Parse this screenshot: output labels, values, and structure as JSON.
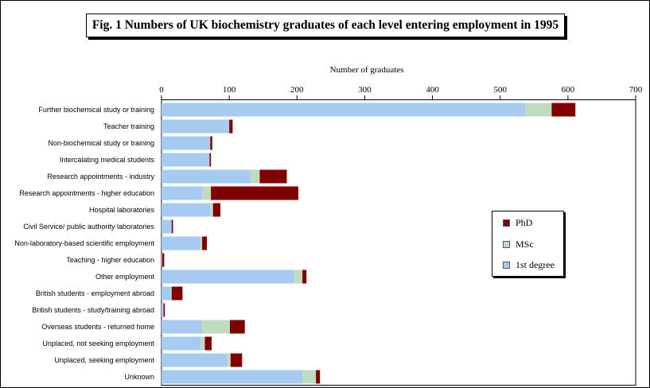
{
  "chart_data": {
    "type": "bar",
    "orientation": "horizontal",
    "stacked": true,
    "title": "Fig. 1 Numbers of UK biochemistry graduates of each level entering employment in 1995",
    "xlabel": "Number of graduates",
    "ylabel": "",
    "xlim": [
      0,
      700
    ],
    "xticks": [
      "0",
      "100",
      "200",
      "300",
      "400",
      "500",
      "600",
      "700"
    ],
    "legend_position": "right",
    "categories": [
      "Further biochemical study or training",
      "Teacher training",
      "Non-biochemical study or training",
      "Intercalating medical students",
      "Research appointments - industry",
      "Research appointments - higher education",
      "Hospital laboratories",
      "Civil Service/ public authority laboratories",
      "Non-laboratory-based scientific employment",
      "Teaching - higher education",
      "Other employment",
      "British students - employment abroad",
      "British students - study/training abroad",
      "Overseas students - returned home",
      "Unplaced, not seeking employment",
      "Unplaced, seeking employment",
      "Unknown"
    ],
    "series": [
      {
        "name": "1st degree",
        "color": "#a6caf0",
        "values": [
          537,
          100,
          72,
          71,
          132,
          60,
          72,
          15,
          57,
          1,
          196,
          14,
          3,
          60,
          58,
          97,
          208
        ]
      },
      {
        "name": "MSc",
        "color": "#c0dcc0",
        "values": [
          39,
          0,
          0,
          0,
          13,
          13,
          4,
          0,
          3,
          0,
          12,
          1,
          0,
          41,
          6,
          5,
          20
        ]
      },
      {
        "name": "PhD",
        "color": "#800000",
        "values": [
          35,
          5,
          3,
          2,
          40,
          129,
          11,
          2,
          7,
          3,
          6,
          16,
          2,
          22,
          10,
          17,
          6
        ]
      }
    ]
  },
  "legend": [
    {
      "label": "PhD",
      "color": "#800000"
    },
    {
      "label": "MSc",
      "color": "#c0dcc0"
    },
    {
      "label": "1st degree",
      "color": "#a6caf0"
    }
  ]
}
